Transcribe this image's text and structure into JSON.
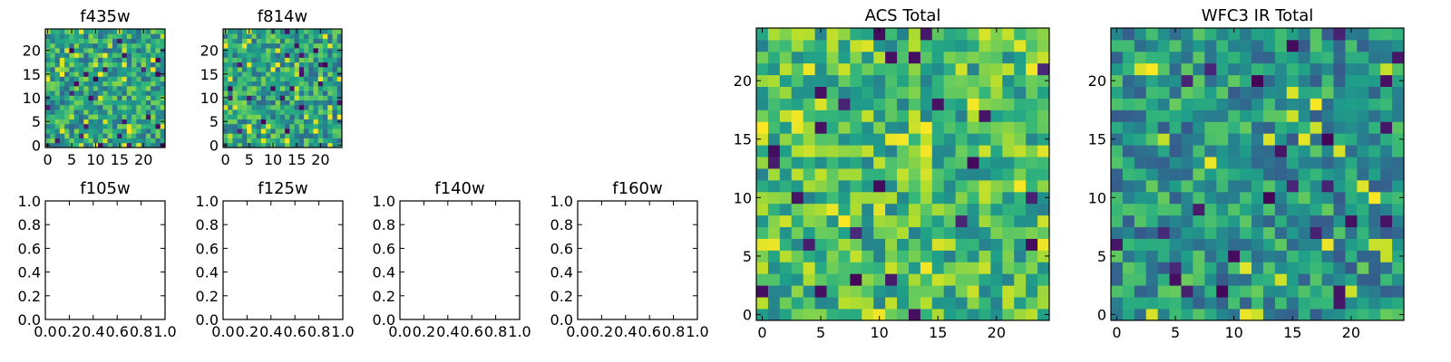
{
  "chart_data": [
    {
      "type": "heatmap",
      "title": "f435w",
      "colormap": "viridis",
      "grid_size": [
        25,
        25
      ],
      "xlim": [
        -0.5,
        24.5
      ],
      "ylim": [
        -0.5,
        24.5
      ],
      "xticks": [
        0,
        5,
        10,
        15,
        20
      ],
      "yticks": [
        0,
        5,
        10,
        15,
        20
      ],
      "value_range": [
        0,
        1
      ],
      "seed": 11,
      "bias": 0.58
    },
    {
      "type": "heatmap",
      "title": "f814w",
      "colormap": "viridis",
      "grid_size": [
        25,
        25
      ],
      "xlim": [
        -0.5,
        24.5
      ],
      "ylim": [
        -0.5,
        24.5
      ],
      "xticks": [
        0,
        5,
        10,
        15,
        20
      ],
      "yticks": [
        0,
        5,
        10,
        15,
        20
      ],
      "value_range": [
        0,
        1
      ],
      "seed": 23,
      "bias": 0.58
    },
    {
      "type": "line",
      "title": "f105w",
      "series": [],
      "xlim": [
        0.0,
        1.0
      ],
      "ylim": [
        0.0,
        1.0
      ],
      "xticks": [
        "0.0",
        "0.2",
        "0.4",
        "0.6",
        "0.8",
        "1.0"
      ],
      "yticks": [
        "0.0",
        "0.2",
        "0.4",
        "0.6",
        "0.8",
        "1.0"
      ]
    },
    {
      "type": "line",
      "title": "f125w",
      "series": [],
      "xlim": [
        0.0,
        1.0
      ],
      "ylim": [
        0.0,
        1.0
      ],
      "xticks": [
        "0.0",
        "0.2",
        "0.4",
        "0.6",
        "0.8",
        "1.0"
      ],
      "yticks": [
        "0.0",
        "0.2",
        "0.4",
        "0.6",
        "0.8",
        "1.0"
      ]
    },
    {
      "type": "line",
      "title": "f140w",
      "series": [],
      "xlim": [
        0.0,
        1.0
      ],
      "ylim": [
        0.0,
        1.0
      ],
      "xticks": [
        "0.0",
        "0.2",
        "0.4",
        "0.6",
        "0.8",
        "1.0"
      ],
      "yticks": [
        "0.0",
        "0.2",
        "0.4",
        "0.6",
        "0.8",
        "1.0"
      ]
    },
    {
      "type": "line",
      "title": "f160w",
      "series": [],
      "xlim": [
        0.0,
        1.0
      ],
      "ylim": [
        0.0,
        1.0
      ],
      "xticks": [
        "0.0",
        "0.2",
        "0.4",
        "0.6",
        "0.8",
        "1.0"
      ],
      "yticks": [
        "0.0",
        "0.2",
        "0.4",
        "0.6",
        "0.8",
        "1.0"
      ]
    },
    {
      "type": "heatmap",
      "title": "ACS Total",
      "colormap": "viridis",
      "grid_size": [
        25,
        25
      ],
      "xlim": [
        -0.5,
        24.5
      ],
      "ylim": [
        -0.5,
        24.5
      ],
      "xticks": [
        0,
        5,
        10,
        15,
        20
      ],
      "yticks": [
        0,
        5,
        10,
        15,
        20
      ],
      "value_range": [
        0,
        1
      ],
      "seed": 37,
      "bias": 0.68
    },
    {
      "type": "heatmap",
      "title": "WFC3 IR Total",
      "colormap": "viridis",
      "grid_size": [
        25,
        25
      ],
      "xlim": [
        -0.5,
        24.5
      ],
      "ylim": [
        -0.5,
        24.5
      ],
      "xticks": [
        0,
        5,
        10,
        15,
        20
      ],
      "yticks": [
        0,
        5,
        10,
        15,
        20
      ],
      "value_range": [
        0,
        1
      ],
      "seed": 53,
      "bias": 0.52
    }
  ]
}
